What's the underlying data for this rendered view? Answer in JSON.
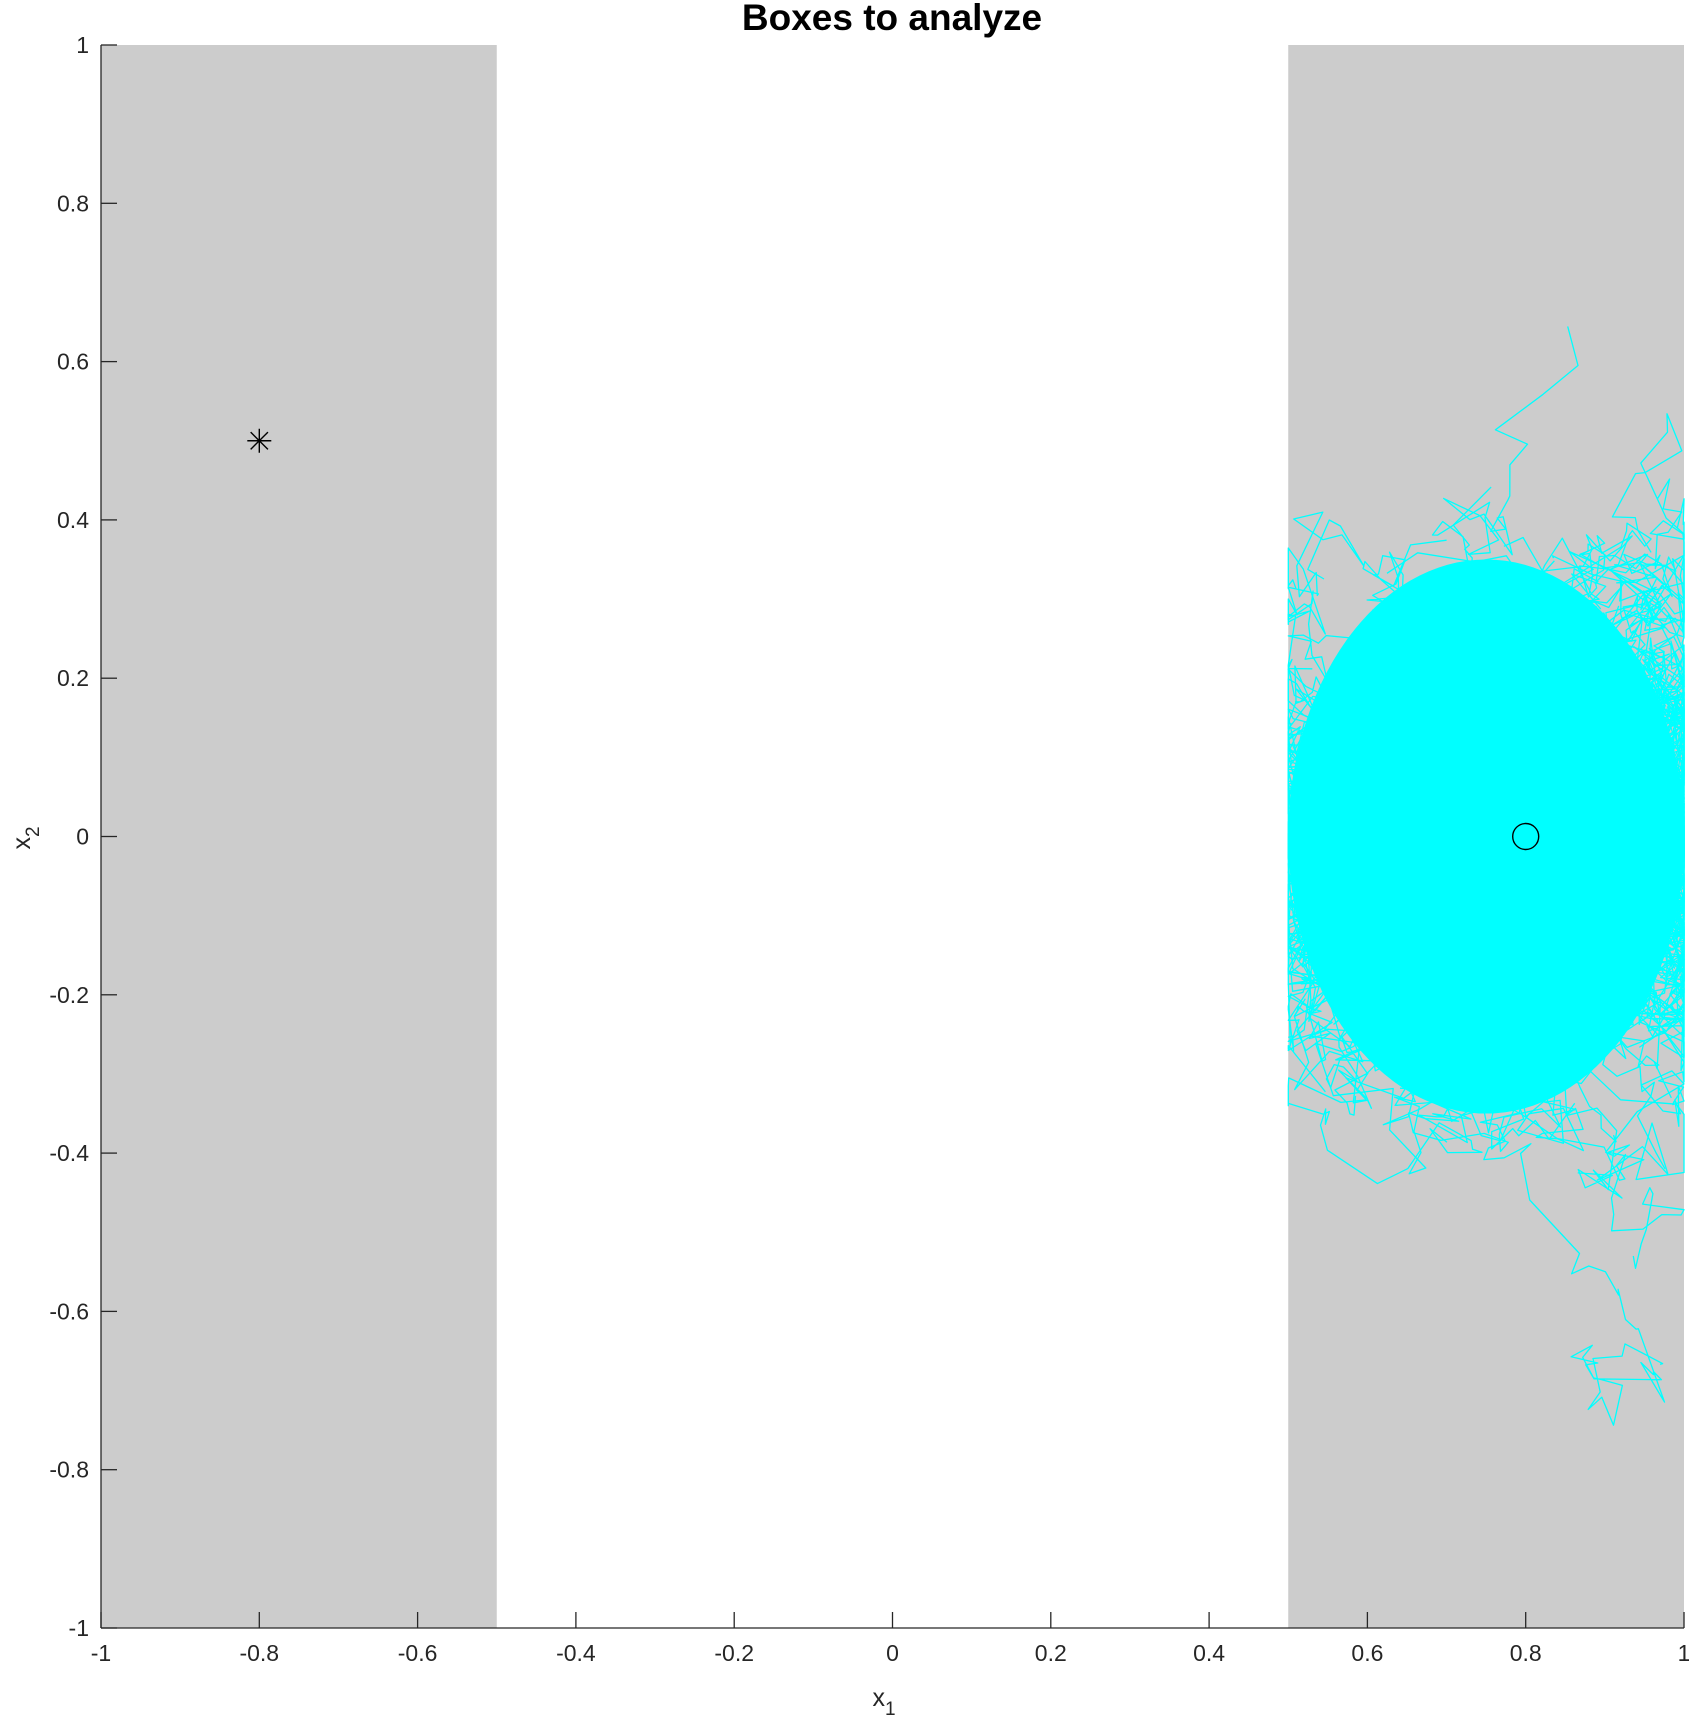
{
  "chart_data": {
    "type": "line",
    "title": "Boxes to analyze",
    "xlabel": {
      "base": "x",
      "sub": "1"
    },
    "ylabel": {
      "base": "x",
      "sub": "2"
    },
    "xlim": [
      -1,
      1
    ],
    "ylim": [
      -1,
      1
    ],
    "x_ticks": [
      -1,
      -0.8,
      -0.6,
      -0.4,
      -0.2,
      0,
      0.2,
      0.4,
      0.6,
      0.8,
      1
    ],
    "x_tick_labels": [
      "-1",
      "-0.8",
      "-0.6",
      "-0.4",
      "-0.2",
      "0",
      "0.2",
      "0.4",
      "0.6",
      "0.8",
      "1"
    ],
    "y_ticks": [
      -1,
      -0.8,
      -0.6,
      -0.4,
      -0.2,
      0,
      0.2,
      0.4,
      0.6,
      0.8,
      1
    ],
    "y_tick_labels": [
      "-1",
      "-0.8",
      "-0.6",
      "-0.4",
      "-0.2",
      "0",
      "0.2",
      "0.4",
      "0.6",
      "0.8",
      "1"
    ],
    "grid": false,
    "boxes": [
      {
        "x": [
          -1,
          -0.5
        ],
        "y": [
          -1,
          1
        ],
        "color": "#cccccc"
      },
      {
        "x": [
          0.5,
          1
        ],
        "y": [
          -1,
          1
        ],
        "color": "#cccccc"
      }
    ],
    "trajectories": {
      "color": "#00ffff",
      "start": [
        0.8,
        0
      ],
      "x_range": [
        0.5,
        1
      ],
      "y_range": [
        -0.8,
        0.7
      ],
      "dense_core": {
        "x": [
          0.5,
          1
        ],
        "y": [
          -0.35,
          0.35
        ]
      }
    },
    "markers": [
      {
        "shape": "asterisk",
        "x": -0.8,
        "y": 0.5,
        "color": "#000000"
      },
      {
        "shape": "circle",
        "x": 0.8,
        "y": 0,
        "color": "#000000"
      }
    ],
    "colors": {
      "box": "#cccccc",
      "trajectory": "#00ffff",
      "axis": "#262626",
      "background": "#ffffff"
    }
  }
}
